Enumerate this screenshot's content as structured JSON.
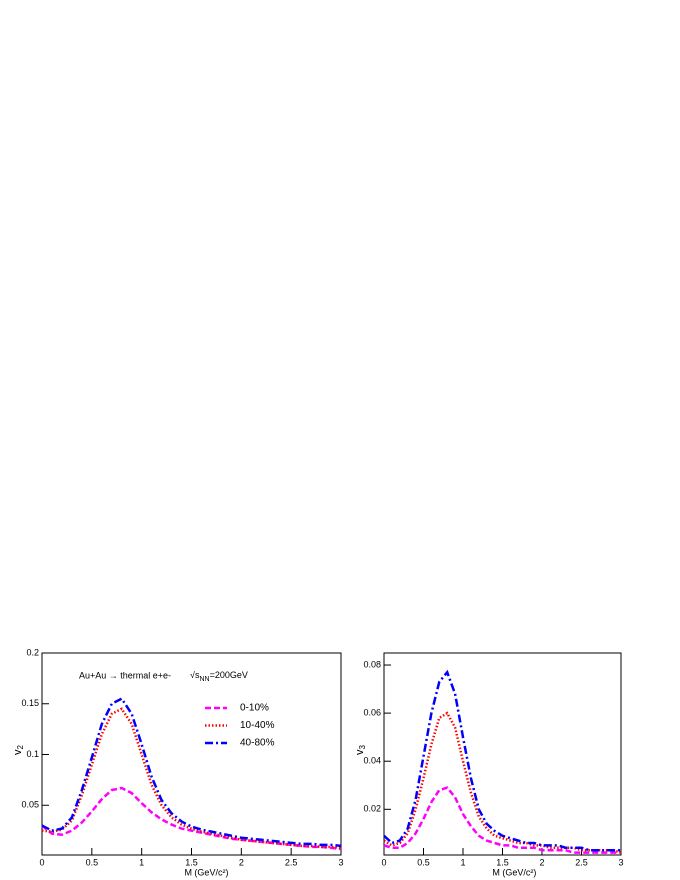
{
  "chart_data": [
    {
      "type": "line",
      "annotation": "Au+Au → thermal e+e-",
      "energy": [
        "√s",
        "NN",
        "=200GeV"
      ],
      "xlabel": "M (GeV/c²)",
      "ylabel": "v",
      "ylabel_sub": "2",
      "xlim": [
        0,
        3
      ],
      "ylim": [
        0.001,
        0.2
      ],
      "xticks": [
        0,
        0.5,
        1,
        1.5,
        2,
        2.5,
        3
      ],
      "yticks": [
        0.05,
        0.1,
        0.15,
        0.2
      ],
      "legend": "upper right",
      "x": [
        0,
        0.1,
        0.2,
        0.3,
        0.4,
        0.5,
        0.6,
        0.7,
        0.8,
        0.9,
        1.0,
        1.1,
        1.2,
        1.3,
        1.4,
        1.5,
        1.6,
        1.7,
        1.8,
        1.9,
        2.0,
        2.1,
        2.2,
        2.3,
        2.4,
        2.5,
        2.6,
        2.7,
        2.8,
        2.9,
        3.0
      ],
      "series": [
        {
          "name": "0-10%",
          "color": "#ff00ff",
          "style": "dashed",
          "values": [
            0.03,
            0.022,
            0.021,
            0.025,
            0.033,
            0.044,
            0.056,
            0.065,
            0.067,
            0.062,
            0.052,
            0.043,
            0.036,
            0.031,
            0.027,
            0.025,
            0.023,
            0.021,
            0.019,
            0.017,
            0.016,
            0.015,
            0.014,
            0.013,
            0.012,
            0.011,
            0.01,
            0.009,
            0.009,
            0.008,
            0.007
          ]
        },
        {
          "name": "10-40%",
          "color": "#ff0000",
          "style": "dotted",
          "values": [
            0.025,
            0.024,
            0.026,
            0.035,
            0.06,
            0.09,
            0.12,
            0.14,
            0.145,
            0.13,
            0.1,
            0.07,
            0.05,
            0.038,
            0.031,
            0.027,
            0.024,
            0.022,
            0.02,
            0.018,
            0.016,
            0.015,
            0.014,
            0.013,
            0.012,
            0.011,
            0.01,
            0.01,
            0.009,
            0.009,
            0.008
          ]
        },
        {
          "name": "40-80%",
          "color": "#0000ff",
          "style": "dashdot",
          "values": [
            0.03,
            0.025,
            0.027,
            0.038,
            0.065,
            0.097,
            0.13,
            0.15,
            0.155,
            0.14,
            0.11,
            0.078,
            0.055,
            0.042,
            0.034,
            0.029,
            0.026,
            0.024,
            0.022,
            0.02,
            0.018,
            0.017,
            0.016,
            0.015,
            0.014,
            0.013,
            0.012,
            0.012,
            0.011,
            0.011,
            0.01
          ]
        }
      ]
    },
    {
      "type": "line",
      "xlabel": "M (GeV/c²)",
      "ylabel": "v",
      "ylabel_sub": "3",
      "xlim": [
        0,
        3
      ],
      "ylim": [
        0.001,
        0.085
      ],
      "xticks": [
        0,
        0.5,
        1,
        1.5,
        2,
        2.5,
        3
      ],
      "yticks": [
        0.02,
        0.04,
        0.06,
        0.08
      ],
      "x": [
        0,
        0.1,
        0.2,
        0.3,
        0.4,
        0.5,
        0.6,
        0.7,
        0.8,
        0.9,
        1.0,
        1.1,
        1.2,
        1.3,
        1.4,
        1.5,
        1.6,
        1.7,
        1.8,
        1.9,
        2.0,
        2.1,
        2.2,
        2.3,
        2.4,
        2.5,
        2.6,
        2.7,
        2.8,
        2.9,
        3.0
      ],
      "series": [
        {
          "color": "#ff00ff",
          "style": "dashed",
          "values": [
            0.005,
            0.004,
            0.004,
            0.006,
            0.01,
            0.016,
            0.023,
            0.028,
            0.029,
            0.025,
            0.018,
            0.013,
            0.009,
            0.007,
            0.006,
            0.005,
            0.005,
            0.004,
            0.004,
            0.004,
            0.003,
            0.003,
            0.003,
            0.003,
            0.002,
            0.002,
            0.002,
            0.002,
            0.002,
            0.002,
            0.002
          ]
        },
        {
          "color": "#ff0000",
          "style": "dotted",
          "values": [
            0.007,
            0.005,
            0.006,
            0.01,
            0.02,
            0.033,
            0.047,
            0.058,
            0.06,
            0.054,
            0.04,
            0.027,
            0.017,
            0.012,
            0.009,
            0.008,
            0.007,
            0.006,
            0.006,
            0.005,
            0.005,
            0.004,
            0.004,
            0.004,
            0.004,
            0.003,
            0.003,
            0.003,
            0.003,
            0.003,
            0.002
          ]
        },
        {
          "color": "#0000ff",
          "style": "dashdot",
          "values": [
            0.009,
            0.006,
            0.007,
            0.012,
            0.024,
            0.042,
            0.06,
            0.073,
            0.077,
            0.068,
            0.05,
            0.033,
            0.02,
            0.014,
            0.011,
            0.009,
            0.008,
            0.007,
            0.006,
            0.006,
            0.005,
            0.005,
            0.005,
            0.004,
            0.004,
            0.004,
            0.003,
            0.003,
            0.003,
            0.003,
            0.003
          ]
        }
      ]
    }
  ]
}
